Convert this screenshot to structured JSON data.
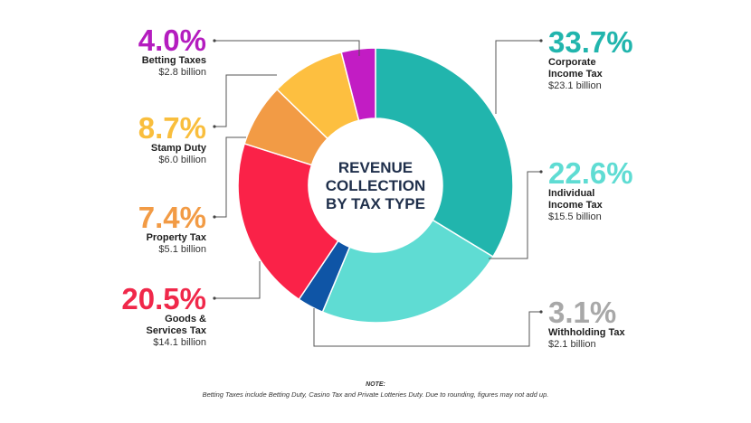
{
  "chart_data": {
    "type": "pie",
    "title": "REVENUE COLLECTION BY TAX TYPE",
    "title_lines": [
      "REVENUE",
      "COLLECTION",
      "BY TAX TYPE"
    ],
    "slices": [
      {
        "name": "Corporate Income Tax",
        "label_lines": [
          "Corporate",
          "Income Tax"
        ],
        "percent_label": "33.7%",
        "percent": 33.7,
        "amount_label": "$23.1 billion",
        "amount": 23.1,
        "color": "#21b5ad",
        "percent_color": "#21b5ad"
      },
      {
        "name": "Individual Income Tax",
        "label_lines": [
          "Individual",
          "Income Tax"
        ],
        "percent_label": "22.6%",
        "percent": 22.6,
        "amount_label": "$15.5 billion",
        "amount": 15.5,
        "color": "#5fdcd3",
        "percent_color": "#5fdcd3"
      },
      {
        "name": "Withholding Tax",
        "label_lines": [
          "Withholding Tax"
        ],
        "percent_label": "3.1%",
        "percent": 3.1,
        "amount_label": "$2.1 billion",
        "amount": 2.1,
        "color": "#0f55a6",
        "percent_color": "#a8a8a8"
      },
      {
        "name": "Goods & Services Tax",
        "label_lines": [
          "Goods &",
          "Services Tax"
        ],
        "percent_label": "20.5%",
        "percent": 20.5,
        "amount_label": "$14.1 billion",
        "amount": 14.1,
        "color": "#fa2248",
        "percent_color": "#f0284a"
      },
      {
        "name": "Property Tax",
        "label_lines": [
          "Property Tax"
        ],
        "percent_label": "7.4%",
        "percent": 7.4,
        "amount_label": "$5.1 billion",
        "amount": 5.1,
        "color": "#f29b45",
        "percent_color": "#f29b45"
      },
      {
        "name": "Stamp Duty",
        "label_lines": [
          "Stamp Duty"
        ],
        "percent_label": "8.7%",
        "percent": 8.7,
        "amount_label": "$6.0 billion",
        "amount": 6.0,
        "color": "#fdbf40",
        "percent_color": "#f9be3d"
      },
      {
        "name": "Betting Taxes",
        "label_lines": [
          "Betting Taxes"
        ],
        "percent_label": "4.0%",
        "percent": 4.0,
        "amount_label": "$2.8 billion",
        "amount": 2.8,
        "color": "#c21cc4",
        "percent_color": "#b41cbf"
      }
    ]
  },
  "note": {
    "title": "NOTE:",
    "text": "Betting Taxes include Betting Duty, Casino Tax and Private Lotteries Duty. Due to rounding, figures may not add up."
  }
}
